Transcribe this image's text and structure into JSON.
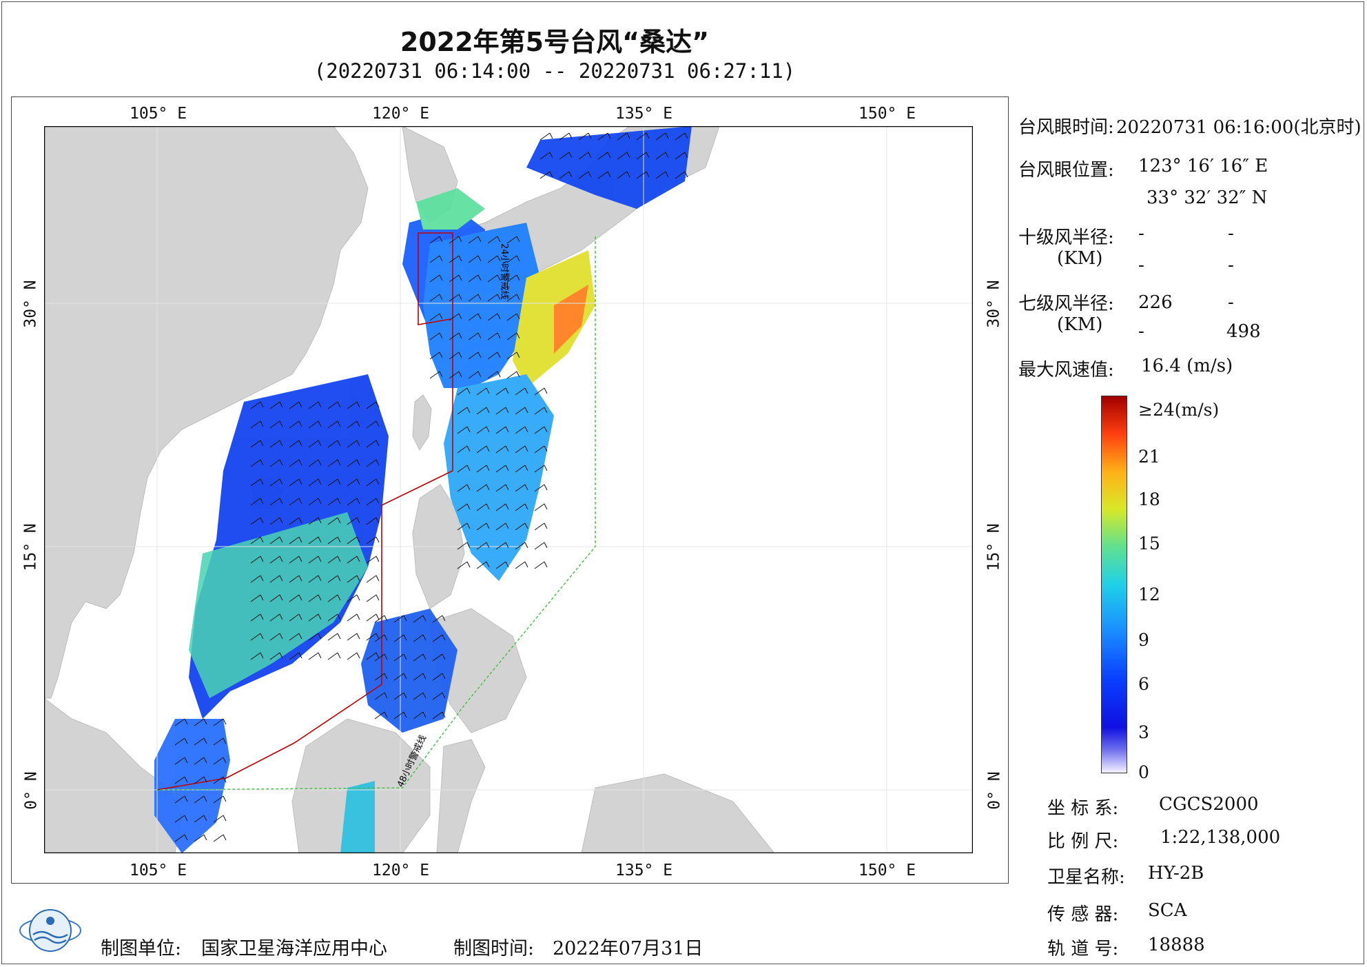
{
  "title": "2022年第5号台风“桑达”",
  "subtitle": "(20220731 06:14:00 -- 20220731 06:27:11)",
  "axes": {
    "top_lon": [
      "105° E",
      "120° E",
      "135° E",
      "150° E"
    ],
    "bottom_lon": [
      "105° E",
      "120° E",
      "135° E",
      "150° E"
    ],
    "left_lat": [
      "30° N",
      "15° N",
      "0° N"
    ],
    "right_lat": [
      "30° N",
      "15° N",
      "0° N"
    ]
  },
  "map_labels": {
    "line_24h": "24小时警戒线",
    "line_48h": "48小时警戒线"
  },
  "info": {
    "eye_time_label": "台风眼时间:",
    "eye_time_value": "20220731 06:16:00(北京时)",
    "eye_pos_label": "台风眼位置:",
    "eye_lon": "123° 16′ 16″ E",
    "eye_lat": "33° 32′ 32″ N",
    "r10_label": "十级风半径:",
    "r10_unit": "(KM)",
    "r10_values": [
      "-",
      "-",
      "-",
      "-"
    ],
    "r7_label": "七级风半径:",
    "r7_unit": "(KM)",
    "r7_values": [
      "226",
      "-",
      "-",
      "498"
    ],
    "max_wind_label": "最大风速值:",
    "max_wind_value": "16.4 (m/s)"
  },
  "colorbar": {
    "labels": [
      "≥24(m/s)",
      "21",
      "18",
      "15",
      "12",
      "9",
      "6",
      "3",
      "0"
    ],
    "colors": [
      "#a00000",
      "#ff4010",
      "#ffb018",
      "#d8e828",
      "#60e090",
      "#20d0e8",
      "#1a90ff",
      "#0a40ff",
      "#1010e0",
      "#f4f2ff"
    ]
  },
  "meta": {
    "crs_label": "坐 标 系:",
    "crs_value": "CGCS2000",
    "scale_label": "比 例 尺:",
    "scale_value": "1:22,138,000",
    "sat_label": "卫星名称:",
    "sat_value": "HY-2B",
    "sensor_label": "传 感 器:",
    "sensor_value": "SCA",
    "orbit_label": "轨 道 号:",
    "orbit_value": "18888"
  },
  "footer": {
    "maker_label": "制图单位:",
    "maker_value": "国家卫星海洋应用中心",
    "date_label": "制图时间:",
    "date_value": "2022年07月31日"
  },
  "style": {
    "land_color": "#d3d3d3",
    "ocean_color": "#ffffff",
    "line_24h_color": "#c00000",
    "line_48h_color": "#40c040"
  }
}
